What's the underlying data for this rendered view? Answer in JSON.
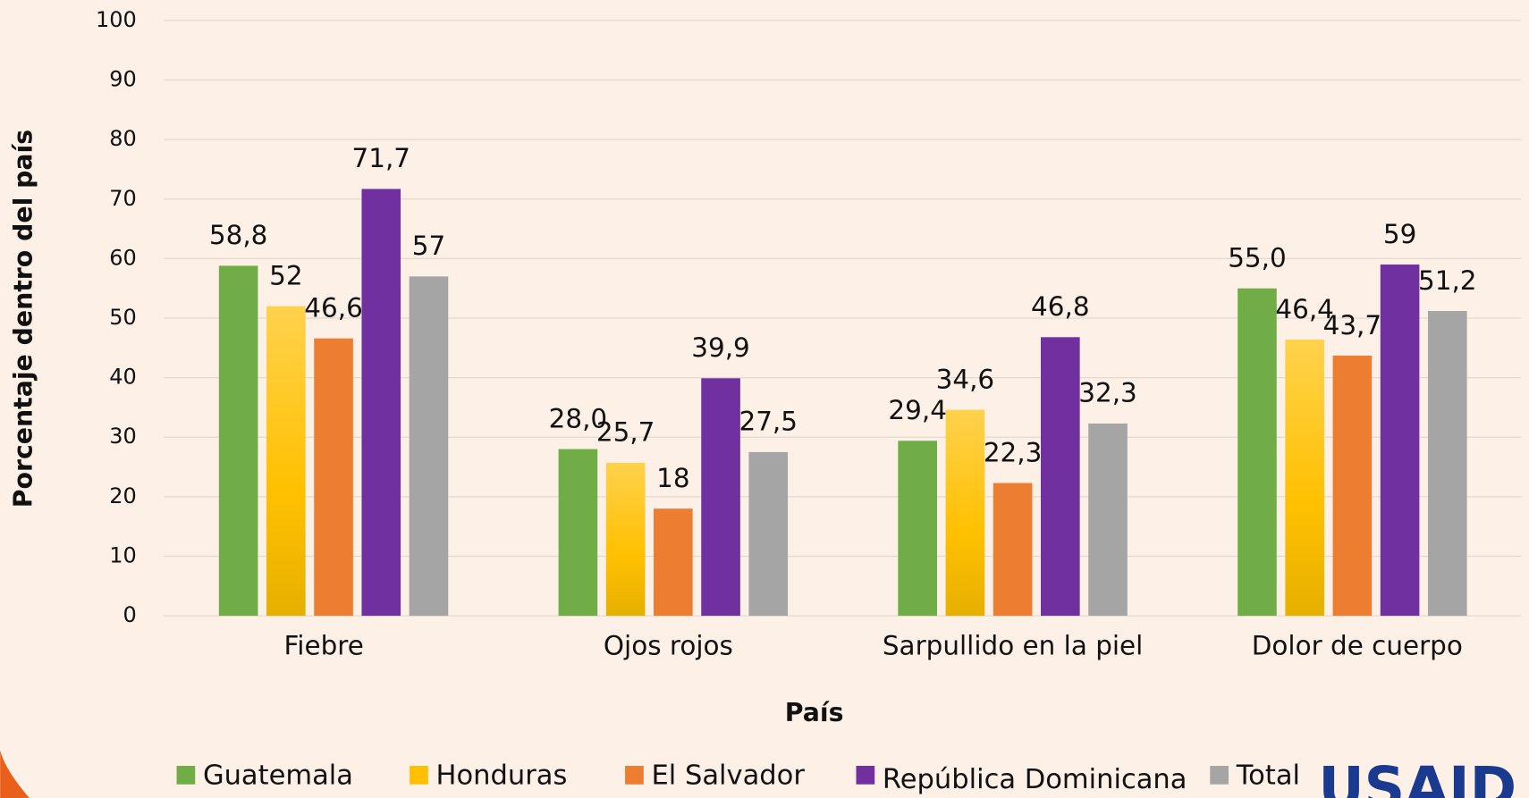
{
  "chart_data": {
    "type": "bar",
    "y_label": "Porcentaje dentro del país",
    "x_label": "País",
    "categories": [
      "Fiebre",
      "Ojos rojos",
      "Sarpullido en la piel",
      "Dolor de cuerpo"
    ],
    "series": [
      {
        "name": "Guatemala",
        "color": "#70ad47",
        "values": [
          58.8,
          28.0,
          29.4,
          55.0
        ],
        "value_labels": [
          "58,8",
          "28,0",
          "29,4",
          "55,0"
        ]
      },
      {
        "name": "Honduras",
        "color": "#ffc000",
        "values": [
          52,
          25.7,
          34.6,
          46.4
        ],
        "value_labels": [
          "52",
          "25,7",
          "34,6",
          "46,4"
        ]
      },
      {
        "name": "El Salvador",
        "color": "#ed7d31",
        "values": [
          46.6,
          18,
          22.3,
          43.7
        ],
        "value_labels": [
          "46,6",
          "18",
          "22,3",
          "43,7"
        ]
      },
      {
        "name": "República Dominicana",
        "color": "#7030a0",
        "values": [
          71.7,
          39.9,
          46.8,
          59
        ],
        "value_labels": [
          "71,7",
          "39,9",
          "46,8",
          "59"
        ]
      },
      {
        "name": "Total",
        "color": "#a5a5a5",
        "values": [
          57,
          27.5,
          32.3,
          51.2
        ],
        "value_labels": [
          "57",
          "27,5",
          "32,3",
          "51,2"
        ]
      }
    ],
    "ylim": [
      0,
      100
    ],
    "yticks": [
      0,
      10,
      20,
      30,
      40,
      50,
      60,
      70,
      80,
      90,
      100
    ],
    "grid": true
  },
  "logo": "USAID"
}
